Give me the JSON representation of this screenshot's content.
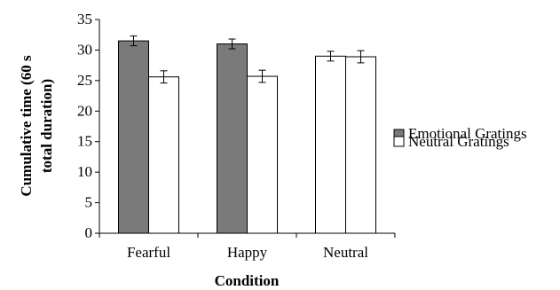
{
  "chart_data": {
    "type": "bar",
    "title": "",
    "xlabel": "Condition",
    "ylabel_lines": [
      "Cumulative time (60 s",
      "total duration)"
    ],
    "categories": [
      "Fearful",
      "Happy",
      "Neutral"
    ],
    "ylim": [
      0,
      35
    ],
    "yticks": [
      0,
      5,
      10,
      15,
      20,
      25,
      30,
      35
    ],
    "grid": false,
    "legend_position": "right",
    "series": [
      {
        "name": "Emotional Gratings",
        "values": [
          31.5,
          31.0,
          29.0
        ],
        "errors": [
          0.8,
          0.8,
          0.8
        ]
      },
      {
        "name": "Neutral Gratings",
        "values": [
          25.6,
          25.7,
          28.9
        ],
        "errors": [
          1.0,
          1.0,
          1.0
        ]
      }
    ],
    "bar_fills": [
      [
        "#7a7a7a",
        "#ffffff"
      ],
      [
        "#7a7a7a",
        "#ffffff"
      ],
      [
        "#ffffff",
        "#ffffff"
      ]
    ],
    "legend_swatch_colors": [
      "#7a7a7a",
      "#ffffff"
    ]
  }
}
